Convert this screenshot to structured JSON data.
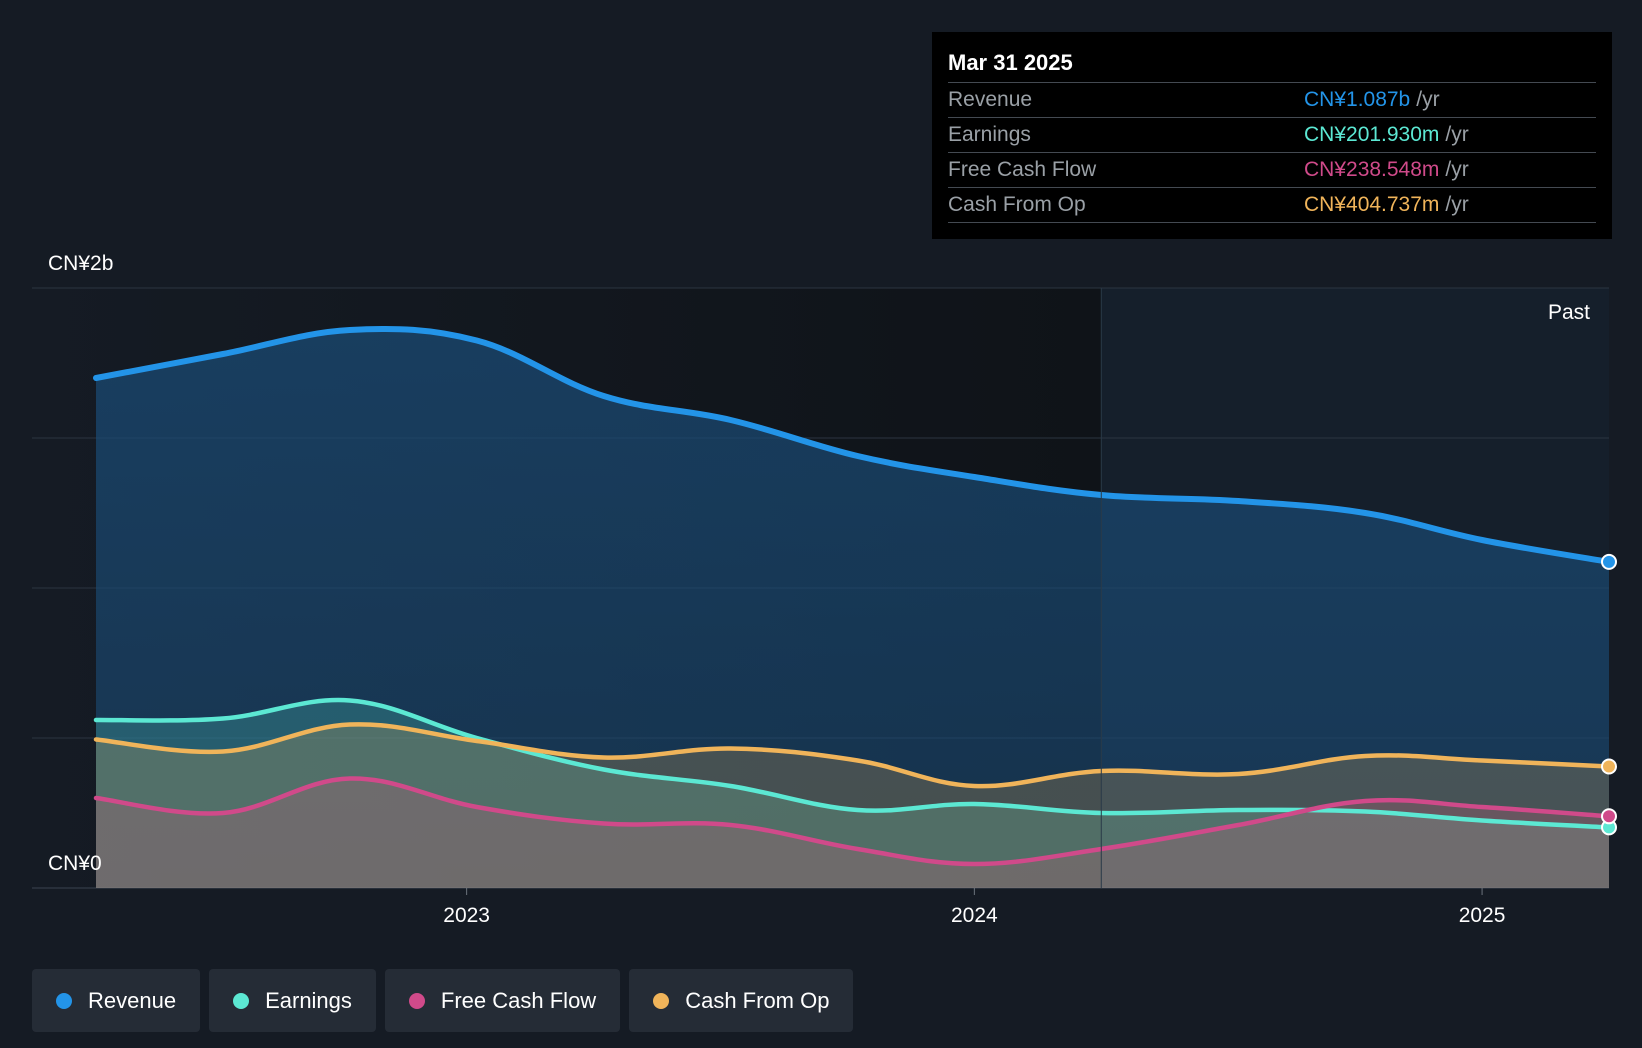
{
  "tooltip": {
    "date": "Mar 31 2025",
    "rows": [
      {
        "label": "Revenue",
        "value": "CN¥1.087b",
        "unit": "/yr",
        "color": "#2394e8"
      },
      {
        "label": "Earnings",
        "value": "CN¥201.930m",
        "unit": "/yr",
        "color": "#5ce8d3"
      },
      {
        "label": "Free Cash Flow",
        "value": "CN¥238.548m",
        "unit": "/yr",
        "color": "#d04a8a"
      },
      {
        "label": "Cash From Op",
        "value": "CN¥404.737m",
        "unit": "/yr",
        "color": "#f0b45a"
      }
    ]
  },
  "legend": [
    {
      "label": "Revenue",
      "color": "#2394e8"
    },
    {
      "label": "Earnings",
      "color": "#5ce8d3"
    },
    {
      "label": "Free Cash Flow",
      "color": "#d04a8a"
    },
    {
      "label": "Cash From Op",
      "color": "#f0b45a"
    }
  ],
  "chart_data": {
    "type": "area",
    "past_label": "Past",
    "y_axis": {
      "top_label": "CN¥2b",
      "bottom_label": "CN¥0",
      "min": 0,
      "max": 2000,
      "unit": "CN¥m"
    },
    "x_axis": {
      "tick_labels": [
        "2023",
        "2024",
        "2025"
      ],
      "tick_dates": [
        2023.0,
        2024.0,
        2025.0
      ],
      "range": [
        2022.27,
        2025.25
      ]
    },
    "forecast_boundary": 2024.25,
    "x": [
      2022.27,
      2022.52,
      2022.77,
      2023.02,
      2023.27,
      2023.52,
      2023.77,
      2024.0,
      2024.25,
      2024.52,
      2024.77,
      2025.0,
      2025.25
    ],
    "series": [
      {
        "name": "Revenue",
        "color": "#2394e8",
        "values": [
          1700,
          1780,
          1860,
          1825,
          1640,
          1560,
          1440,
          1370,
          1310,
          1290,
          1250,
          1160,
          1087
        ]
      },
      {
        "name": "Earnings",
        "color": "#5ce8d3",
        "values": [
          560,
          565,
          625,
          500,
          395,
          340,
          260,
          280,
          250,
          260,
          255,
          225,
          202
        ]
      },
      {
        "name": "Free Cash Flow",
        "color": "#d04a8a",
        "values": [
          300,
          250,
          365,
          270,
          215,
          210,
          130,
          80,
          130,
          210,
          290,
          270,
          239
        ]
      },
      {
        "name": "Cash From Op",
        "color": "#f0b45a",
        "values": [
          495,
          455,
          545,
          490,
          435,
          465,
          425,
          340,
          390,
          380,
          440,
          425,
          405
        ]
      }
    ]
  }
}
